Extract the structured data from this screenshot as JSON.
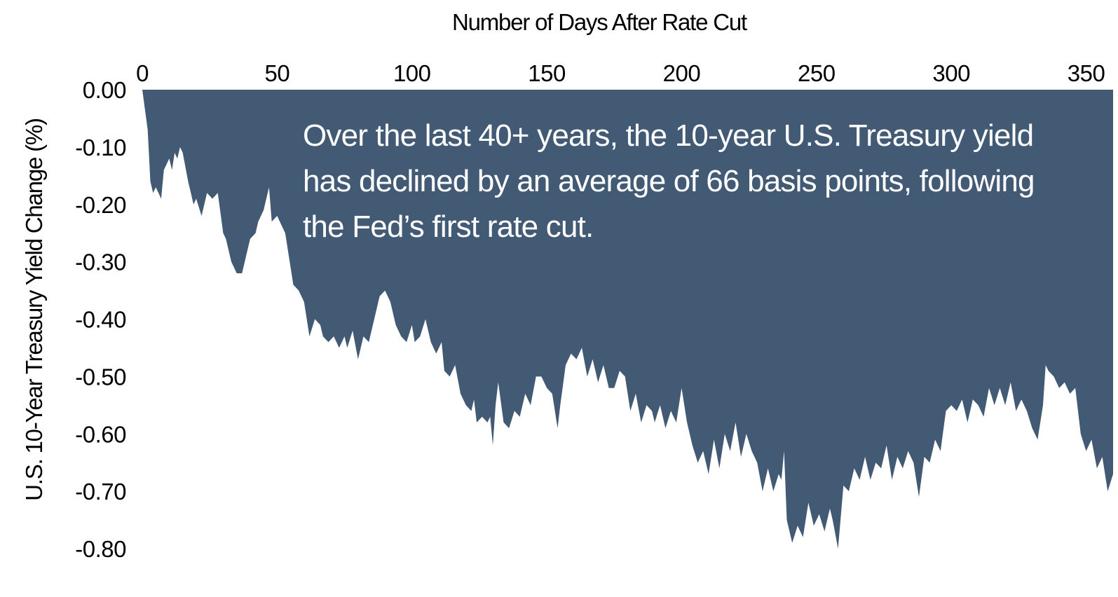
{
  "chart_data": {
    "type": "area",
    "title": "",
    "xlabel": "Number of Days After Rate Cut",
    "ylabel": "U.S. 10-Year Treasury Yield Change (%)",
    "xlim": [
      0,
      360
    ],
    "ylim": [
      -0.8,
      0.0
    ],
    "x_axis_position": "top",
    "x_ticks": [
      "0",
      "50",
      "100",
      "150",
      "200",
      "250",
      "300",
      "350"
    ],
    "y_ticks": [
      "0.00",
      "-0.10",
      "-0.20",
      "-0.30",
      "-0.40",
      "-0.50",
      "-0.60",
      "-0.70",
      "-0.80"
    ],
    "grid": false,
    "fill_color": "#435a75",
    "annotation": [
      "Over the last 40+ years, the 10-year U.S. Treasury yield",
      "has declined by an average of 66 basis points, following",
      "the Fed’s first rate cut."
    ],
    "series": [
      {
        "x": [
          0,
          2,
          3,
          4,
          5,
          6,
          7,
          8,
          10,
          11,
          12,
          13,
          14,
          15,
          17,
          18,
          19,
          20,
          22,
          24,
          26,
          28,
          30,
          31,
          33,
          35,
          37,
          39,
          40,
          42,
          43,
          45,
          47,
          48,
          50,
          51,
          53,
          55,
          56,
          58,
          60,
          62,
          64,
          66,
          67,
          69,
          71,
          73,
          75,
          76,
          78,
          80,
          82,
          84,
          86,
          88,
          90,
          92,
          94,
          96,
          98,
          100,
          101,
          103,
          105,
          107,
          109,
          111,
          112,
          114,
          116,
          118,
          120,
          122,
          123,
          124,
          126,
          128,
          129,
          130,
          131,
          132,
          134,
          136,
          138,
          140,
          142,
          144,
          146,
          148,
          150,
          152,
          154,
          155,
          157,
          159,
          161,
          163,
          165,
          167,
          169,
          171,
          173,
          175,
          177,
          179,
          181,
          183,
          185,
          187,
          189,
          190,
          192,
          194,
          196,
          198,
          200,
          202,
          204,
          206,
          208,
          210,
          212,
          214,
          216,
          218,
          220,
          222,
          224,
          226,
          228,
          230,
          232,
          234,
          236,
          237,
          238,
          239,
          241,
          243,
          245,
          247,
          249,
          251,
          253,
          255,
          256,
          258,
          260,
          262,
          264,
          266,
          268,
          270,
          272,
          274,
          276,
          278,
          280,
          282,
          284,
          286,
          288,
          290,
          292,
          294,
          296,
          298,
          300,
          302,
          304,
          306,
          308,
          310,
          312,
          314,
          316,
          318,
          320,
          322,
          324,
          326,
          328,
          330,
          332,
          334,
          335,
          336,
          338,
          340,
          342,
          344,
          346,
          348,
          350,
          352,
          354,
          356,
          358,
          360
        ],
        "values": [
          0.0,
          -0.07,
          -0.16,
          -0.18,
          -0.17,
          -0.18,
          -0.19,
          -0.14,
          -0.12,
          -0.14,
          -0.11,
          -0.12,
          -0.1,
          -0.11,
          -0.16,
          -0.18,
          -0.2,
          -0.19,
          -0.22,
          -0.18,
          -0.19,
          -0.18,
          -0.25,
          -0.26,
          -0.3,
          -0.32,
          -0.32,
          -0.28,
          -0.26,
          -0.25,
          -0.23,
          -0.21,
          -0.17,
          -0.23,
          -0.22,
          -0.23,
          -0.25,
          -0.31,
          -0.34,
          -0.35,
          -0.37,
          -0.43,
          -0.4,
          -0.41,
          -0.43,
          -0.44,
          -0.43,
          -0.45,
          -0.43,
          -0.45,
          -0.42,
          -0.47,
          -0.43,
          -0.44,
          -0.4,
          -0.36,
          -0.35,
          -0.37,
          -0.41,
          -0.43,
          -0.44,
          -0.41,
          -0.44,
          -0.43,
          -0.4,
          -0.44,
          -0.46,
          -0.44,
          -0.49,
          -0.5,
          -0.48,
          -0.53,
          -0.55,
          -0.56,
          -0.54,
          -0.58,
          -0.57,
          -0.58,
          -0.57,
          -0.62,
          -0.55,
          -0.51,
          -0.58,
          -0.59,
          -0.56,
          -0.57,
          -0.53,
          -0.55,
          -0.5,
          -0.5,
          -0.52,
          -0.53,
          -0.59,
          -0.55,
          -0.48,
          -0.46,
          -0.47,
          -0.45,
          -0.5,
          -0.47,
          -0.51,
          -0.48,
          -0.52,
          -0.52,
          -0.49,
          -0.5,
          -0.56,
          -0.53,
          -0.58,
          -0.55,
          -0.56,
          -0.58,
          -0.55,
          -0.59,
          -0.56,
          -0.58,
          -0.52,
          -0.58,
          -0.62,
          -0.65,
          -0.63,
          -0.67,
          -0.61,
          -0.66,
          -0.6,
          -0.63,
          -0.58,
          -0.64,
          -0.6,
          -0.63,
          -0.65,
          -0.7,
          -0.66,
          -0.7,
          -0.67,
          -0.68,
          -0.63,
          -0.75,
          -0.79,
          -0.76,
          -0.78,
          -0.72,
          -0.76,
          -0.74,
          -0.77,
          -0.73,
          -0.75,
          -0.8,
          -0.69,
          -0.7,
          -0.66,
          -0.68,
          -0.64,
          -0.68,
          -0.65,
          -0.66,
          -0.62,
          -0.68,
          -0.64,
          -0.66,
          -0.63,
          -0.65,
          -0.71,
          -0.64,
          -0.65,
          -0.61,
          -0.63,
          -0.56,
          -0.55,
          -0.56,
          -0.54,
          -0.58,
          -0.54,
          -0.55,
          -0.57,
          -0.52,
          -0.55,
          -0.52,
          -0.55,
          -0.51,
          -0.56,
          -0.54,
          -0.56,
          -0.59,
          -0.61,
          -0.55,
          -0.48,
          -0.49,
          -0.5,
          -0.52,
          -0.51,
          -0.53,
          -0.52,
          -0.6,
          -0.63,
          -0.61,
          -0.66,
          -0.64,
          -0.7,
          -0.67
        ]
      }
    ]
  }
}
